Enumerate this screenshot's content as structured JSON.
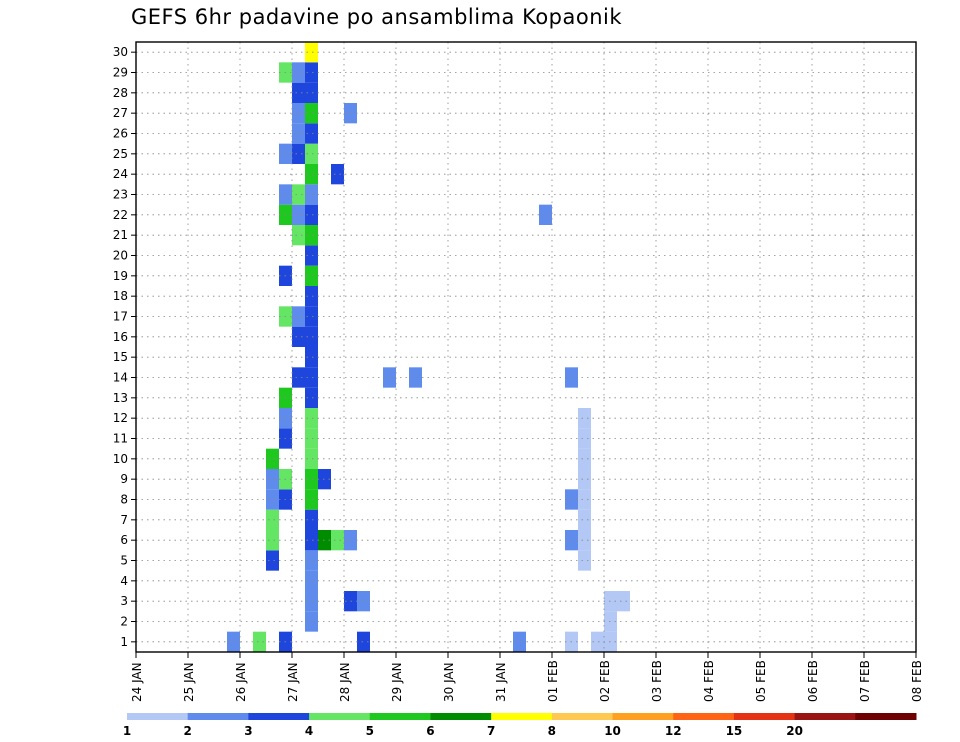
{
  "chart_data": {
    "type": "heatmap",
    "title": "GEFS 6hr padavine po ansamblima Kopaonik",
    "xlabel": "",
    "ylabel": "",
    "x_ticks": [
      "24 JAN",
      "25 JAN",
      "26 JAN",
      "27 JAN",
      "28 JAN",
      "29 JAN",
      "30 JAN",
      "31 JAN",
      "01 FEB",
      "02 FEB",
      "03 FEB",
      "04 FEB",
      "05 FEB",
      "06 FEB",
      "07 FEB",
      "08 FEB"
    ],
    "y_ticks": [
      1,
      2,
      3,
      4,
      5,
      6,
      7,
      8,
      9,
      10,
      11,
      12,
      13,
      14,
      15,
      16,
      17,
      18,
      19,
      20,
      21,
      22,
      23,
      24,
      25,
      26,
      27,
      28,
      29,
      30
    ],
    "ylim": [
      0.5,
      30.5
    ],
    "x_step_hours": 6,
    "grid": true,
    "colorbar": {
      "labels": [
        "1",
        "2",
        "3",
        "4",
        "5",
        "6",
        "7",
        "8",
        "10",
        "12",
        "15",
        "20"
      ],
      "colors": [
        "#b4c8f5",
        "#5f8cec",
        "#1e46dc",
        "#64e664",
        "#1ec81e",
        "#008c00",
        "#ffff00",
        "#ffc850",
        "#ffa020",
        "#ff6414",
        "#e63214",
        "#9b1414",
        "#6e0000"
      ]
    },
    "cells": [
      [
        7,
        1,
        1
      ],
      [
        9,
        1,
        3
      ],
      [
        11,
        1,
        2
      ],
      [
        10,
        5,
        2
      ],
      [
        10,
        6,
        3
      ],
      [
        10,
        7,
        3
      ],
      [
        10,
        8,
        1
      ],
      [
        10,
        9,
        1
      ],
      [
        10,
        10,
        4
      ],
      [
        11,
        8,
        2
      ],
      [
        11,
        9,
        3
      ],
      [
        11,
        11,
        2
      ],
      [
        11,
        12,
        1
      ],
      [
        11,
        13,
        4
      ],
      [
        11,
        17,
        3
      ],
      [
        11,
        19,
        2
      ],
      [
        11,
        22,
        4
      ],
      [
        11,
        23,
        1
      ],
      [
        11,
        25,
        1
      ],
      [
        11,
        29,
        3
      ],
      [
        12,
        14,
        2
      ],
      [
        12,
        16,
        2
      ],
      [
        12,
        17,
        1
      ],
      [
        12,
        21,
        3
      ],
      [
        12,
        22,
        1
      ],
      [
        12,
        23,
        3
      ],
      [
        12,
        25,
        2
      ],
      [
        12,
        26,
        1
      ],
      [
        12,
        27,
        1
      ],
      [
        12,
        28,
        2
      ],
      [
        12,
        29,
        1
      ],
      [
        13,
        2,
        1
      ],
      [
        13,
        3,
        1
      ],
      [
        13,
        4,
        1
      ],
      [
        13,
        5,
        1
      ],
      [
        13,
        6,
        2
      ],
      [
        13,
        7,
        2
      ],
      [
        13,
        8,
        4
      ],
      [
        13,
        9,
        4
      ],
      [
        13,
        10,
        3
      ],
      [
        13,
        11,
        3
      ],
      [
        13,
        12,
        3
      ],
      [
        13,
        13,
        2
      ],
      [
        13,
        14,
        2
      ],
      [
        13,
        15,
        2
      ],
      [
        13,
        16,
        2
      ],
      [
        13,
        17,
        2
      ],
      [
        13,
        18,
        2
      ],
      [
        13,
        19,
        4
      ],
      [
        13,
        20,
        2
      ],
      [
        13,
        21,
        4
      ],
      [
        13,
        22,
        2
      ],
      [
        13,
        23,
        1
      ],
      [
        13,
        24,
        4
      ],
      [
        13,
        25,
        3
      ],
      [
        13,
        26,
        2
      ],
      [
        13,
        27,
        4
      ],
      [
        13,
        28,
        2
      ],
      [
        13,
        29,
        2
      ],
      [
        13,
        30,
        6
      ],
      [
        14,
        6,
        5
      ],
      [
        14,
        9,
        2
      ],
      [
        15,
        6,
        3
      ],
      [
        15,
        24,
        2
      ],
      [
        16,
        3,
        2
      ],
      [
        16,
        6,
        1
      ],
      [
        16,
        27,
        1
      ],
      [
        17,
        3,
        1
      ],
      [
        17,
        1,
        2
      ],
      [
        19,
        14,
        1
      ],
      [
        21,
        14,
        1
      ],
      [
        29,
        1,
        1
      ],
      [
        31,
        22,
        1
      ],
      [
        33,
        14,
        1
      ],
      [
        33,
        8,
        1
      ],
      [
        33,
        6,
        1
      ],
      [
        33,
        1,
        0
      ],
      [
        34,
        5,
        0
      ],
      [
        34,
        6,
        0
      ],
      [
        34,
        7,
        0
      ],
      [
        34,
        8,
        0
      ],
      [
        34,
        9,
        0
      ],
      [
        34,
        10,
        0
      ],
      [
        34,
        11,
        0
      ],
      [
        34,
        12,
        0
      ],
      [
        35,
        1,
        0
      ],
      [
        36,
        2,
        0
      ],
      [
        36,
        3,
        0
      ],
      [
        36,
        1,
        0
      ],
      [
        37,
        3,
        0
      ]
    ]
  }
}
